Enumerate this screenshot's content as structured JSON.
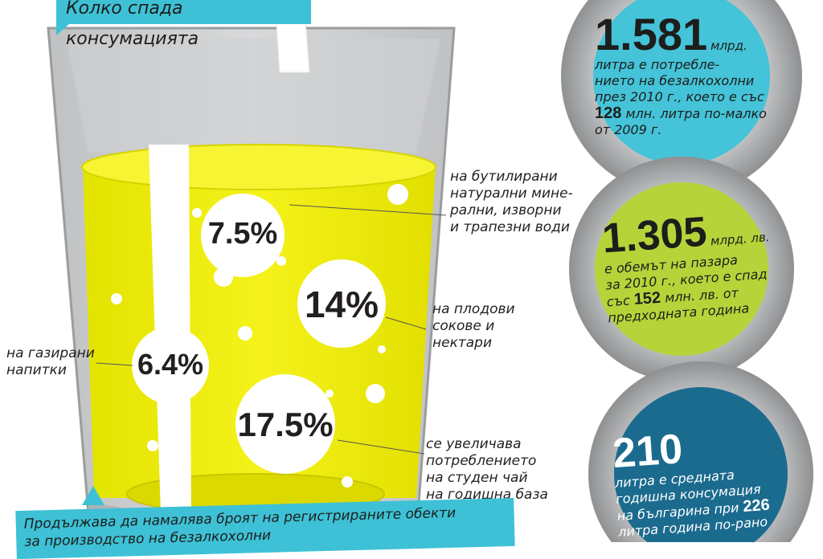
{
  "title": "Колко спада консумацията",
  "segments": [
    {
      "value": "7.5%",
      "label_lines": [
        "на бутилирани",
        "натурални мине-",
        "рални, изворни",
        "и трапезни води"
      ]
    },
    {
      "value": "14%",
      "label_lines": [
        "на плодови",
        "сокове и",
        "нектари"
      ]
    },
    {
      "value": "6.4%",
      "label_lines": [
        "на газирани",
        "напитки"
      ]
    },
    {
      "value": "17.5%",
      "label_lines": [
        "се увеличава",
        "потреблението",
        "на студен чай",
        "на годишна база"
      ]
    }
  ],
  "caps": [
    {
      "big": "1.581",
      "unit": "млрд.",
      "lines": [
        "литра е потребле-",
        "нието на безалкохолни",
        "през 2010 г., което е със"
      ],
      "bold_num": "128",
      "line_after_bold": " млн. литра по-малко",
      "last_line": "от 2009 г.",
      "color": "#45c3d8"
    },
    {
      "big": "1.305",
      "unit": "млрд. лв.",
      "lines": [
        "е обемът на пазара",
        "за 2010 г., което е спад",
        "със "
      ],
      "bold_num": "152",
      "line_after_bold": " млн. лв. от",
      "last_line": "предходната година",
      "color": "#b6d43a"
    },
    {
      "big": "210",
      "lines": [
        "литра е средната",
        "годишна консумация",
        "на българина при "
      ],
      "bold_num": "226",
      "last_line": "литра година по-рано",
      "color": "#1b6b8e"
    }
  ],
  "footer": {
    "line1": "Продължава да намалява броят на регистрираните обекти",
    "line2": "за производство на безалкохолни"
  },
  "colors": {
    "accent": "#3ec1d6",
    "liquid": "#e6e600",
    "glass": "#c9cbcc"
  }
}
